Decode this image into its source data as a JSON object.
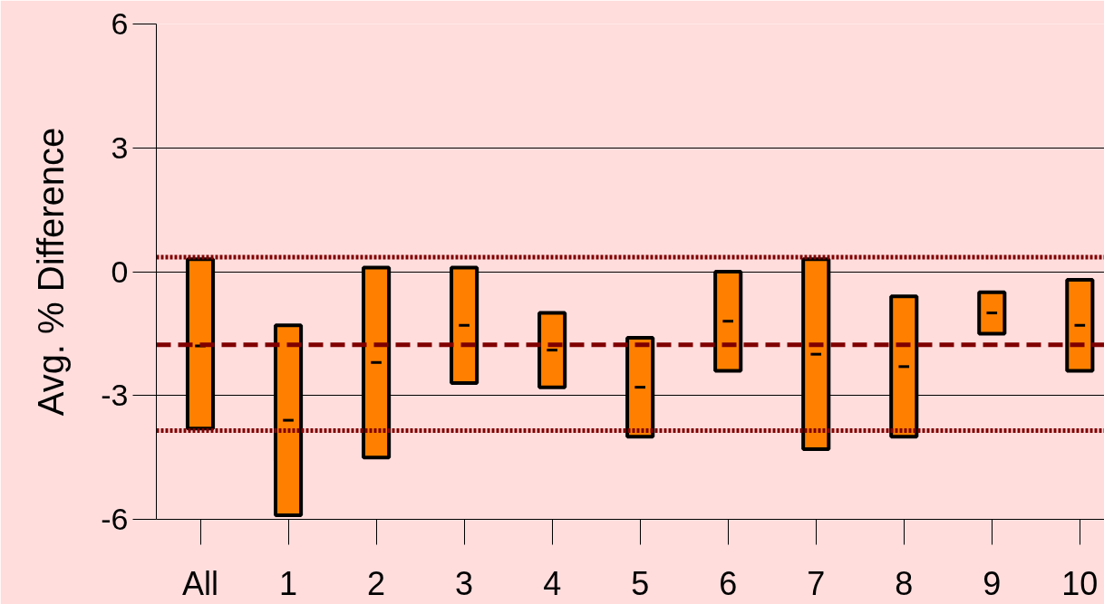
{
  "chart_data": {
    "type": "box",
    "ylabel": "Avg. % Difference",
    "categories": [
      "All",
      "1",
      "2",
      "3",
      "4",
      "5",
      "6",
      "7",
      "8",
      "9",
      "10"
    ],
    "color": "#ff8000",
    "boxes": [
      {
        "low": -3.8,
        "q1": -3.8,
        "median": -1.8,
        "q3": 0.3,
        "high": 0.3
      },
      {
        "low": -5.9,
        "q1": -5.9,
        "median": -3.6,
        "q3": -1.3,
        "high": -1.3
      },
      {
        "low": -4.5,
        "q1": -4.5,
        "median": -2.2,
        "q3": 0.1,
        "high": 0.1
      },
      {
        "low": -2.7,
        "q1": -2.7,
        "median": -1.3,
        "q3": 0.1,
        "high": 0.1
      },
      {
        "low": -2.8,
        "q1": -2.8,
        "median": -1.9,
        "q3": -1.0,
        "high": -1.0
      },
      {
        "low": -4.0,
        "q1": -4.0,
        "median": -2.8,
        "q3": -1.6,
        "high": -1.6
      },
      {
        "low": -2.4,
        "q1": -2.4,
        "median": -1.2,
        "q3": 0.0,
        "high": 0.0
      },
      {
        "low": -4.3,
        "q1": -4.3,
        "median": -2.0,
        "q3": 0.3,
        "high": 0.3
      },
      {
        "low": -4.0,
        "q1": -4.0,
        "median": -2.3,
        "q3": -0.6,
        "high": -0.6
      },
      {
        "low": -1.5,
        "q1": -1.5,
        "median": -1.0,
        "q3": -0.5,
        "high": -0.5
      },
      {
        "low": -2.4,
        "q1": -2.4,
        "median": -1.3,
        "q3": -0.2,
        "high": -0.2
      }
    ],
    "ylim": [
      -6,
      6
    ],
    "yticks": [
      -6,
      -3,
      0,
      3,
      6
    ],
    "grid": "y",
    "ref_lines": [
      {
        "axis": "y",
        "value": 0.35,
        "color": "#800000",
        "line_style": "dotted"
      },
      {
        "axis": "y",
        "value": -3.85,
        "color": "#800000",
        "line_style": "dotted"
      },
      {
        "axis": "y",
        "value": -1.77,
        "color": "#800000",
        "line_style": "dashed"
      }
    ]
  }
}
